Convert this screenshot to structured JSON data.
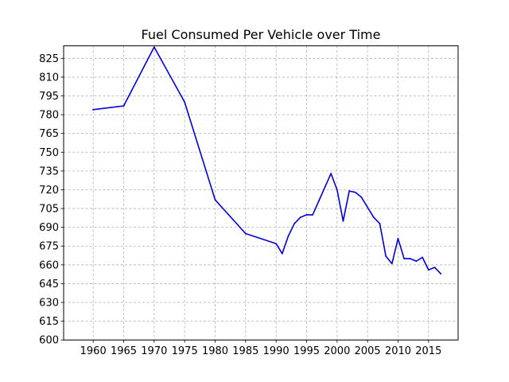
{
  "chart_data": {
    "type": "line",
    "title": "Fuel Consumed Per Vehicle over Time",
    "xlabel": "",
    "ylabel": "",
    "xlim": [
      1955.15,
      2019.85
    ],
    "ylim": [
      600,
      835
    ],
    "x_ticks": [
      1960,
      1965,
      1970,
      1975,
      1980,
      1985,
      1990,
      1995,
      2000,
      2005,
      2010,
      2015
    ],
    "y_ticks": [
      600,
      615,
      630,
      645,
      660,
      675,
      690,
      705,
      720,
      735,
      750,
      765,
      780,
      795,
      810,
      825
    ],
    "grid": true,
    "legend": "none",
    "colors": {
      "line": "#0000dd",
      "grid": "#b0b0b0",
      "axes": "#000000"
    },
    "series": [
      {
        "x": [
          1960,
          1965,
          1970,
          1975,
          1980,
          1985,
          1990,
          1991,
          1992,
          1993,
          1994,
          1995,
          1996,
          1997,
          1998,
          1999,
          2000,
          2001,
          2002,
          2003,
          2004,
          2005,
          2006,
          2007,
          2008,
          2009,
          2010,
          2011,
          2012,
          2013,
          2014,
          2015,
          2016,
          2017
        ],
        "y": [
          784,
          787,
          834,
          790,
          712,
          685,
          677,
          669,
          683,
          693,
          698,
          700,
          700,
          711,
          722,
          733,
          720,
          695,
          719,
          718,
          714,
          706,
          698,
          693,
          667,
          661,
          681,
          665,
          665,
          663,
          666,
          656,
          658,
          653
        ]
      }
    ]
  }
}
